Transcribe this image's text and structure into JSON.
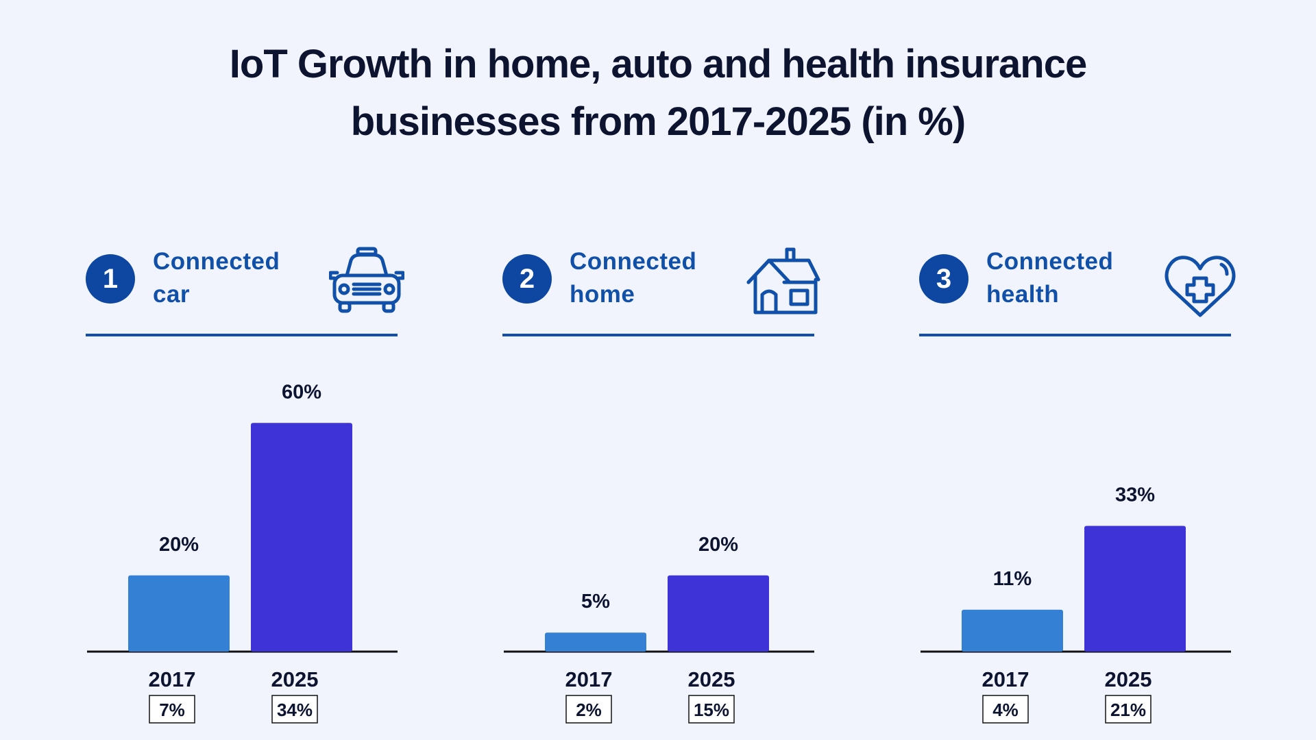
{
  "title_lines": [
    "IoT Growth in home, auto and health insurance",
    "businesses from 2017-2025 (in %)"
  ],
  "colors": {
    "bar_2017": "#3380d4",
    "bar_2025": "#3d33d6",
    "accent": "#1050a8",
    "badge": "#0d47a1",
    "axis": "#111111"
  },
  "chart_data": [
    {
      "type": "bar",
      "number": "1",
      "heading": [
        "Connected",
        "car"
      ],
      "icon": "car-icon",
      "categories": [
        "2017",
        "2025"
      ],
      "values": [
        20,
        60
      ],
      "value_labels": [
        "20%",
        "60%"
      ],
      "sub_labels": [
        "7%",
        "34%"
      ],
      "ylim": [
        0,
        64
      ]
    },
    {
      "type": "bar",
      "number": "2",
      "heading": [
        "Connected",
        "home"
      ],
      "icon": "house-icon",
      "categories": [
        "2017",
        "2025"
      ],
      "values": [
        5,
        20
      ],
      "value_labels": [
        "5%",
        "20%"
      ],
      "sub_labels": [
        "2%",
        "15%"
      ],
      "ylim": [
        0,
        64
      ]
    },
    {
      "type": "bar",
      "number": "3",
      "heading": [
        "Connected",
        "health"
      ],
      "icon": "heart-plus-icon",
      "categories": [
        "2017",
        "2025"
      ],
      "values": [
        11,
        33
      ],
      "value_labels": [
        "11%",
        "33%"
      ],
      "sub_labels": [
        "4%",
        "21%"
      ],
      "ylim": [
        0,
        64
      ]
    }
  ]
}
